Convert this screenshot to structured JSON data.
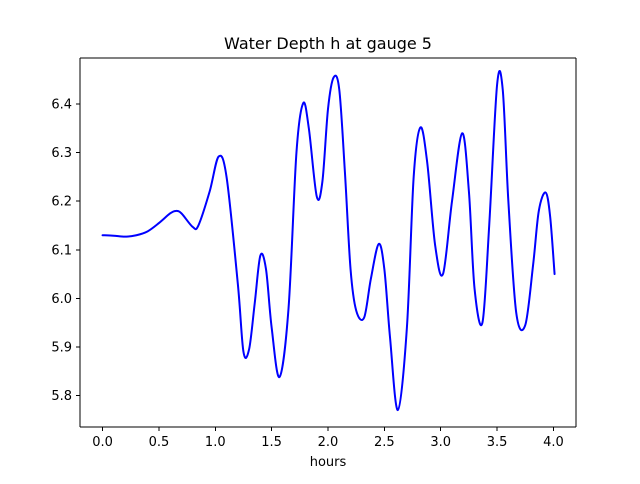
{
  "chart_data": {
    "type": "line",
    "title": "Water Depth h at gauge 5",
    "xlabel": "hours",
    "ylabel": "",
    "xlim": [
      -0.2,
      4.2
    ],
    "ylim": [
      5.735,
      6.495
    ],
    "grid": false,
    "legend": "none",
    "x_ticks": [
      0.0,
      0.5,
      1.0,
      1.5,
      2.0,
      2.5,
      3.0,
      3.5,
      4.0
    ],
    "x_tick_labels": [
      "0.0",
      "0.5",
      "1.0",
      "1.5",
      "2.0",
      "2.5",
      "3.0",
      "3.5",
      "4.0"
    ],
    "y_ticks": [
      5.8,
      5.9,
      6.0,
      6.1,
      6.2,
      6.3,
      6.4
    ],
    "y_tick_labels": [
      "5.8",
      "5.9",
      "6.0",
      "6.1",
      "6.2",
      "6.3",
      "6.4"
    ],
    "series": [
      {
        "color": "#0000ff",
        "x": [
          0.0,
          0.1,
          0.2,
          0.3,
          0.4,
          0.5,
          0.6,
          0.65,
          0.7,
          0.8,
          0.85,
          0.95,
          1.03,
          1.1,
          1.2,
          1.25,
          1.3,
          1.35,
          1.4,
          1.45,
          1.5,
          1.57,
          1.65,
          1.72,
          1.78,
          1.83,
          1.9,
          1.95,
          2.0,
          2.05,
          2.1,
          2.15,
          2.2,
          2.25,
          2.32,
          2.38,
          2.45,
          2.5,
          2.55,
          2.62,
          2.7,
          2.76,
          2.82,
          2.88,
          2.95,
          3.02,
          3.1,
          3.19,
          3.25,
          3.3,
          3.37,
          3.43,
          3.5,
          3.55,
          3.6,
          3.67,
          3.75,
          3.82,
          3.87,
          3.93,
          3.97,
          4.01
        ],
        "values": [
          6.13,
          6.129,
          6.127,
          6.13,
          6.138,
          6.155,
          6.175,
          6.18,
          6.175,
          6.147,
          6.15,
          6.22,
          6.292,
          6.25,
          6.03,
          5.89,
          5.895,
          5.99,
          6.088,
          6.06,
          5.94,
          5.838,
          5.98,
          6.3,
          6.402,
          6.35,
          6.21,
          6.24,
          6.39,
          6.455,
          6.43,
          6.26,
          6.06,
          5.975,
          5.96,
          6.04,
          6.112,
          6.06,
          5.92,
          5.77,
          5.94,
          6.25,
          6.352,
          6.28,
          6.11,
          6.05,
          6.2,
          6.34,
          6.22,
          6.02,
          5.95,
          6.15,
          6.44,
          6.43,
          6.2,
          5.97,
          5.945,
          6.07,
          6.18,
          6.218,
          6.17,
          6.05
        ]
      }
    ]
  }
}
